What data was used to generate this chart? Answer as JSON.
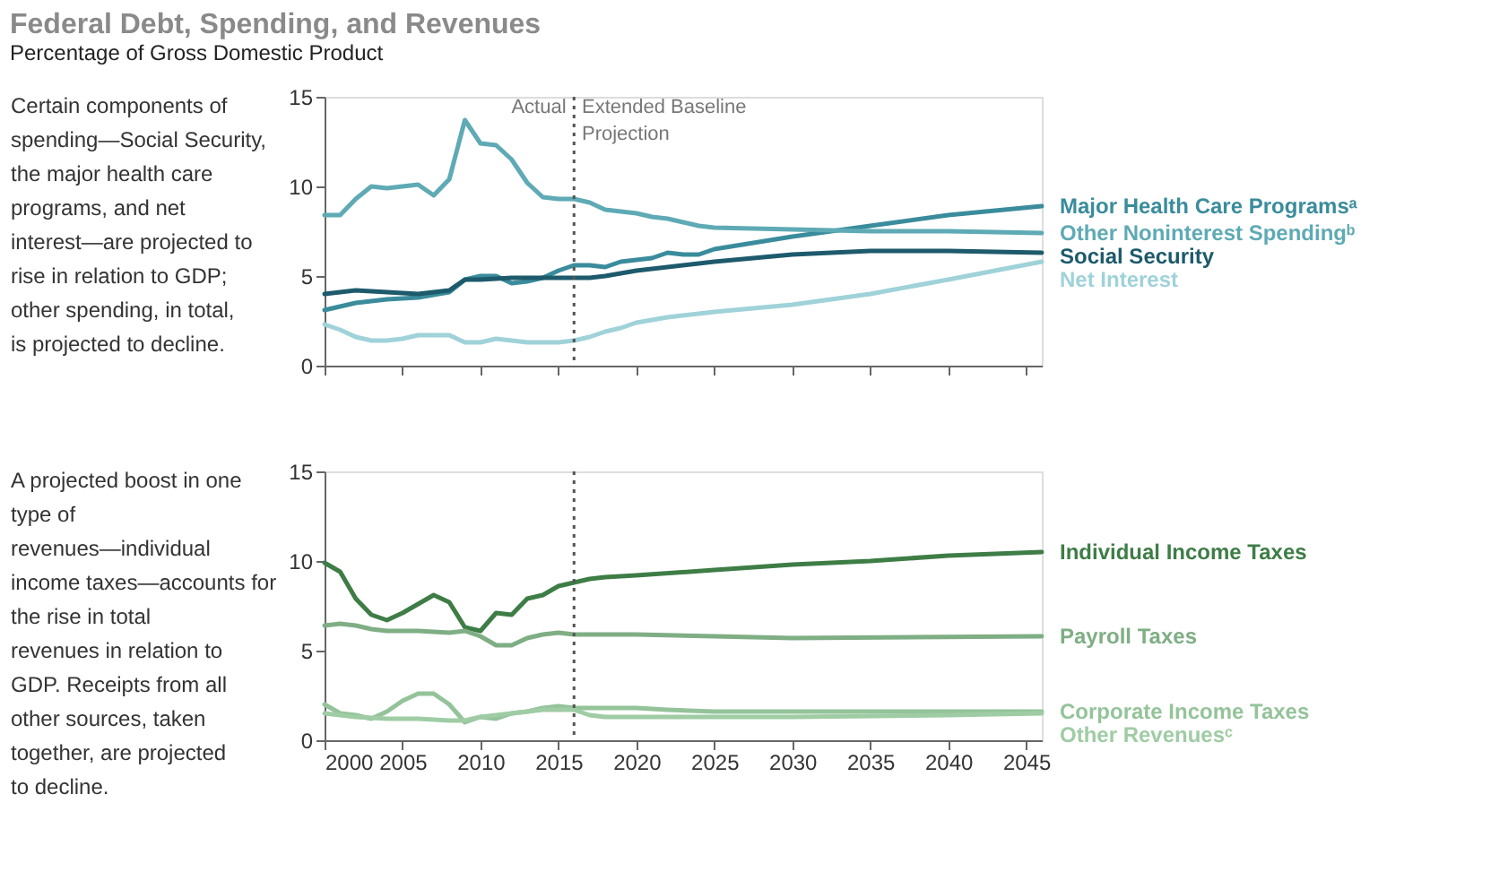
{
  "chart_data": [
    {
      "type": "line",
      "title": "Federal Debt, Spending, and Revenues",
      "subtitle": "Percentage of Gross Domestic Product",
      "xlim": [
        2000,
        2046
      ],
      "xticks": [
        2000,
        2005,
        2010,
        2015,
        2020,
        2025,
        2030,
        2035,
        2040,
        2045
      ],
      "ylim": [
        0,
        15
      ],
      "yticks": [
        0,
        5,
        10,
        15
      ],
      "tick_labels": "y",
      "grid": false,
      "annotations": [
        "Certain components of spending—Social Security, the major health care programs, and net interest—are projected to rise in relation to GDP; other spending, in total, is projected to decline.",
        {
          "text": "Actual",
          "x": 2015.5,
          "y": 15
        },
        {
          "text": "Extended Baseline Projection",
          "x": 2016.5,
          "y": 15
        }
      ],
      "ref_lines": [
        {
          "axis": "x",
          "value": 2016,
          "line_style": "dotted",
          "color": "#555555"
        }
      ],
      "series": [
        {
          "name": "Major Health Care Programsᵃ",
          "color": "#3a8c9c",
          "x": [
            2000,
            2002,
            2004,
            2006,
            2008,
            2009,
            2010,
            2011,
            2012,
            2013,
            2014,
            2015,
            2016,
            2017,
            2018,
            2019,
            2020,
            2021,
            2022,
            2023,
            2024,
            2025,
            2030,
            2035,
            2040,
            2046
          ],
          "values": [
            3.1,
            3.5,
            3.7,
            3.8,
            4.1,
            4.8,
            5.0,
            5.0,
            4.6,
            4.7,
            4.9,
            5.3,
            5.6,
            5.6,
            5.5,
            5.8,
            5.9,
            6.0,
            6.3,
            6.2,
            6.2,
            6.5,
            7.2,
            7.8,
            8.4,
            8.9
          ]
        },
        {
          "name": "Other Noninterest Spendingᵇ",
          "color": "#5eaab5",
          "x": [
            2000,
            2001,
            2002,
            2003,
            2004,
            2005,
            2006,
            2007,
            2008,
            2009,
            2010,
            2011,
            2012,
            2013,
            2014,
            2015,
            2016,
            2017,
            2018,
            2019,
            2020,
            2021,
            2022,
            2023,
            2024,
            2025,
            2030,
            2035,
            2040,
            2046
          ],
          "values": [
            8.4,
            8.4,
            9.3,
            10.0,
            9.9,
            10.0,
            10.1,
            9.5,
            10.4,
            13.7,
            12.4,
            12.3,
            11.5,
            10.2,
            9.4,
            9.3,
            9.3,
            9.1,
            8.7,
            8.6,
            8.5,
            8.3,
            8.2,
            8.0,
            7.8,
            7.7,
            7.6,
            7.5,
            7.5,
            7.4
          ]
        },
        {
          "name": "Social Security",
          "color": "#1d5a6c",
          "x": [
            2000,
            2002,
            2004,
            2006,
            2008,
            2009,
            2010,
            2012,
            2014,
            2016,
            2017,
            2018,
            2020,
            2025,
            2030,
            2035,
            2040,
            2046
          ],
          "values": [
            4.0,
            4.2,
            4.1,
            4.0,
            4.2,
            4.8,
            4.8,
            4.9,
            4.9,
            4.9,
            4.9,
            5.0,
            5.3,
            5.8,
            6.2,
            6.4,
            6.4,
            6.3
          ]
        },
        {
          "name": "Net Interest",
          "color": "#9fd2d9",
          "x": [
            2000,
            2001,
            2002,
            2003,
            2004,
            2005,
            2006,
            2007,
            2008,
            2009,
            2010,
            2011,
            2012,
            2013,
            2014,
            2015,
            2016,
            2017,
            2018,
            2019,
            2020,
            2022,
            2025,
            2030,
            2035,
            2040,
            2046
          ],
          "values": [
            2.3,
            2.0,
            1.6,
            1.4,
            1.4,
            1.5,
            1.7,
            1.7,
            1.7,
            1.3,
            1.3,
            1.5,
            1.4,
            1.3,
            1.3,
            1.3,
            1.4,
            1.6,
            1.9,
            2.1,
            2.4,
            2.7,
            3.0,
            3.4,
            4.0,
            4.8,
            5.8
          ]
        }
      ]
    },
    {
      "type": "line",
      "xlim": [
        2000,
        2046
      ],
      "xticks": [
        2000,
        2005,
        2010,
        2015,
        2020,
        2025,
        2030,
        2035,
        2040,
        2045
      ],
      "ylim": [
        0,
        15
      ],
      "yticks": [
        0,
        5,
        10,
        15
      ],
      "grid": false,
      "annotations": [
        "A projected boost in one type of revenues—individual income taxes—accounts for the rise in total revenues in relation to GDP. Receipts from all other sources, taken together, are projected to decline."
      ],
      "ref_lines": [
        {
          "axis": "x",
          "value": 2016,
          "line_style": "dotted",
          "color": "#555555"
        }
      ],
      "series": [
        {
          "name": "Individual Income Taxes",
          "color": "#3e7d46",
          "x": [
            2000,
            2001,
            2002,
            2003,
            2004,
            2005,
            2006,
            2007,
            2008,
            2009,
            2010,
            2011,
            2012,
            2013,
            2014,
            2015,
            2016,
            2017,
            2018,
            2020,
            2025,
            2030,
            2035,
            2040,
            2046
          ],
          "values": [
            9.9,
            9.4,
            7.9,
            7.0,
            6.7,
            7.1,
            7.6,
            8.1,
            7.7,
            6.3,
            6.1,
            7.1,
            7.0,
            7.9,
            8.1,
            8.6,
            8.8,
            9.0,
            9.1,
            9.2,
            9.5,
            9.8,
            10.0,
            10.3,
            10.5
          ]
        },
        {
          "name": "Payroll Taxes",
          "color": "#7fae84",
          "x": [
            2000,
            2001,
            2002,
            2003,
            2004,
            2006,
            2008,
            2009,
            2010,
            2011,
            2012,
            2013,
            2014,
            2015,
            2016,
            2020,
            2025,
            2030,
            2046
          ],
          "values": [
            6.4,
            6.5,
            6.4,
            6.2,
            6.1,
            6.1,
            6.0,
            6.1,
            5.8,
            5.3,
            5.3,
            5.7,
            5.9,
            6.0,
            5.9,
            5.9,
            5.8,
            5.7,
            5.8
          ]
        },
        {
          "name": "Corporate Income Taxes",
          "color": "#94c39a",
          "x": [
            2000,
            2001,
            2002,
            2003,
            2004,
            2005,
            2006,
            2007,
            2008,
            2009,
            2010,
            2011,
            2012,
            2013,
            2014,
            2015,
            2016,
            2018,
            2019,
            2020,
            2022,
            2025,
            2030,
            2046
          ],
          "values": [
            2.0,
            1.5,
            1.4,
            1.2,
            1.6,
            2.2,
            2.6,
            2.6,
            2.0,
            1.0,
            1.3,
            1.2,
            1.5,
            1.6,
            1.8,
            1.9,
            1.8,
            1.8,
            1.8,
            1.8,
            1.7,
            1.6,
            1.6,
            1.6
          ]
        },
        {
          "name": "Other Revenuesᶜ",
          "color": "#9fcca4",
          "x": [
            2000,
            2002,
            2004,
            2006,
            2008,
            2009,
            2010,
            2012,
            2014,
            2016,
            2017,
            2018,
            2020,
            2025,
            2030,
            2040,
            2046
          ],
          "values": [
            1.5,
            1.3,
            1.2,
            1.2,
            1.1,
            1.1,
            1.3,
            1.5,
            1.7,
            1.7,
            1.4,
            1.3,
            1.3,
            1.3,
            1.3,
            1.4,
            1.5
          ]
        }
      ]
    }
  ]
}
